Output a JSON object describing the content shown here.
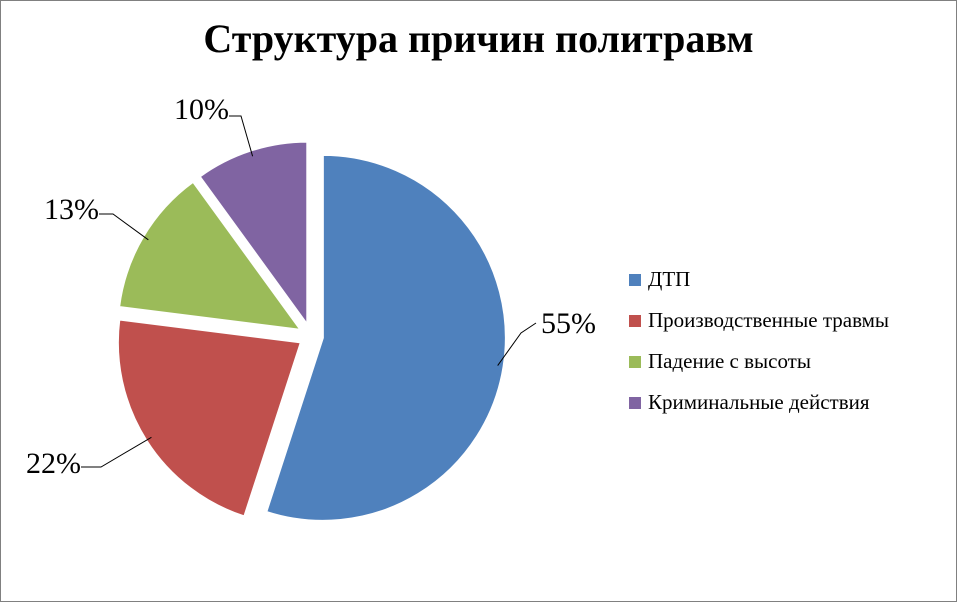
{
  "chart_data": {
    "type": "pie",
    "title": "Структура причин политравм",
    "categories": [
      "ДТП",
      "Производственные травмы",
      "Падение с высоты",
      "Криминальные действия"
    ],
    "values": [
      55,
      22,
      13,
      10
    ],
    "data_labels": [
      "55%",
      "22%",
      "13%",
      "10%"
    ],
    "colors": [
      "#4F81BD",
      "#C0504D",
      "#9BBB59",
      "#8064A2"
    ],
    "exploded": true,
    "legend_position": "right"
  }
}
